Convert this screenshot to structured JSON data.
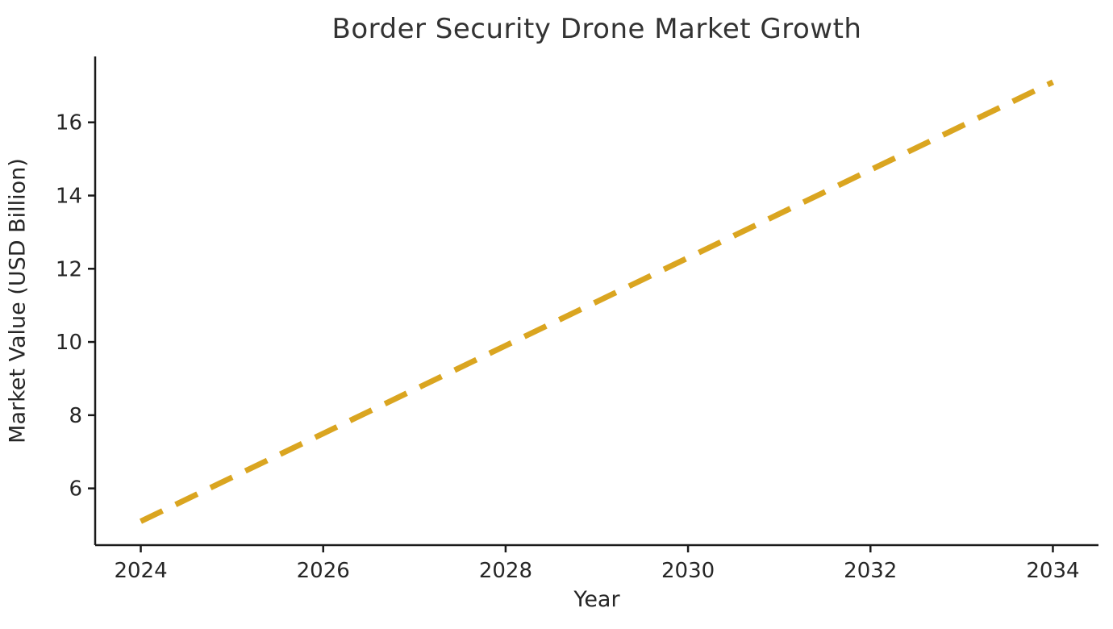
{
  "figure": {
    "title": "Border Security Drone Market Growth",
    "xlabel": "Year",
    "ylabel": "Market Value (USD Billion)",
    "colors": {
      "background": "#ffffff",
      "axis": "#1a1a1a",
      "text": "#262626",
      "trend_line": "#DAA520"
    }
  },
  "chart_data": {
    "type": "line",
    "title": "Border Security Drone Market Growth",
    "xlabel": "Year",
    "ylabel": "Market Value (USD Billion)",
    "series": [
      {
        "name": "Market Value (USD Billion)",
        "x": [
          2024,
          2025,
          2026,
          2027,
          2028,
          2029,
          2030,
          2031,
          2032,
          2033,
          2034
        ],
        "values": [
          5.1,
          6.3,
          7.5,
          8.7,
          9.9,
          11.1,
          12.3,
          13.5,
          14.7,
          15.9,
          17.1
        ],
        "line_style": "dashed",
        "color": "#DAA520",
        "line_width": 7
      }
    ],
    "xticks": [
      2024,
      2026,
      2028,
      2030,
      2032,
      2034
    ],
    "yticks": [
      6,
      8,
      10,
      12,
      14,
      16
    ],
    "xlim": [
      2023.5,
      2034.5
    ],
    "ylim": [
      4.45,
      17.8
    ],
    "grid": false,
    "legend": "none",
    "spines": [
      "left",
      "bottom"
    ]
  }
}
